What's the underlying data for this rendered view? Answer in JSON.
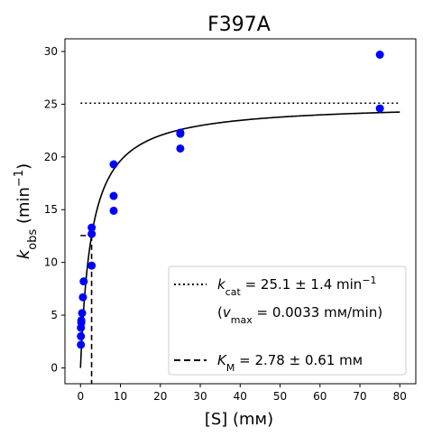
{
  "chart_data": {
    "type": "scatter",
    "title": "F397A",
    "xlabel": "[S] (mм)",
    "ylabel": "kobs (min−1)",
    "xlim": [
      -3.9,
      84
    ],
    "ylim": [
      -1.5,
      31.2
    ],
    "xticks": [
      0,
      10,
      20,
      30,
      40,
      50,
      60,
      70,
      80
    ],
    "yticks": [
      0,
      5,
      10,
      15,
      20,
      25,
      30
    ],
    "grid": false,
    "legend_position": "lower-right",
    "series": [
      {
        "kind": "points",
        "color": "#0000ff",
        "x": [
          0.1,
          0.1,
          0.1,
          0.2,
          0.2,
          0.4,
          0.6,
          0.8,
          2.8,
          2.8,
          2.8,
          8.3,
          8.3,
          8.3,
          25,
          25,
          25,
          75,
          75
        ],
        "y": [
          2.2,
          3.0,
          3.8,
          4.3,
          4.5,
          5.2,
          6.7,
          8.2,
          9.7,
          12.7,
          13.3,
          14.9,
          16.3,
          19.3,
          20.8,
          22.2,
          22.3,
          24.6,
          29.7
        ]
      },
      {
        "kind": "fit",
        "color": "#000000",
        "equation": "kobs = kcat·[S]/(KM + [S])",
        "kcat": 25.1,
        "KM": 2.78,
        "x_range": [
          0,
          80
        ]
      },
      {
        "kind": "kcat-line",
        "color": "#000000",
        "y": 25.1,
        "x_range": [
          0,
          80
        ]
      },
      {
        "kind": "km-marker",
        "color": "#000000",
        "x": 2.78,
        "y_half": 12.55,
        "x_start": 0
      }
    ],
    "legend": {
      "kcat_line": {
        "symbol": "k",
        "subscript": "cat",
        "value_text": " = 25.1 ± 1.4 min",
        "superscript": "−1"
      },
      "vmax_line": {
        "prefix": "(",
        "symbol": "v",
        "subscript": "max",
        "value_text": " = 0.0033 mм/min)"
      },
      "km_line": {
        "symbol": "K",
        "subscript": "M",
        "value_text": " = 2.78 ± 0.61 mм"
      }
    },
    "ylabel_parts": {
      "symbol": "k",
      "subscript": "obs",
      "unit_open": " (min",
      "superscript": "−1",
      "unit_close": ")"
    }
  }
}
